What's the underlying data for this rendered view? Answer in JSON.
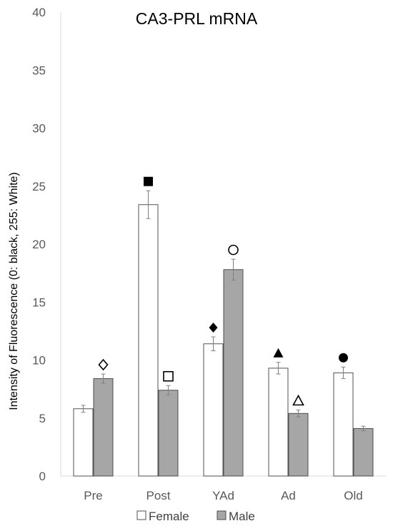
{
  "chart_data": {
    "type": "bar",
    "title": "CA3-PRL  mRNA",
    "xlabel": "",
    "ylabel": "Intensity of Fluorescence (0: black, 255: White)",
    "ylim": [
      0,
      40
    ],
    "yticks": [
      0,
      5,
      10,
      15,
      20,
      25,
      30,
      35,
      40
    ],
    "grid": false,
    "legend_position": "bottom",
    "categories": [
      "Pre",
      "Post",
      "YAd",
      "Ad",
      "Old"
    ],
    "series": [
      {
        "name": "Female",
        "fill": "#ffffff",
        "stroke": "#404040",
        "values": [
          5.8,
          23.4,
          11.4,
          9.3,
          8.9
        ],
        "errors": [
          0.3,
          1.2,
          0.6,
          0.5,
          0.5
        ],
        "markers": [
          "",
          "filled-square",
          "filled-diamond",
          "filled-triangle",
          "filled-circle"
        ]
      },
      {
        "name": "Male",
        "fill": "#a6a6a6",
        "stroke": "#404040",
        "values": [
          8.4,
          7.4,
          17.8,
          5.4,
          4.1
        ],
        "errors": [
          0.4,
          0.4,
          0.9,
          0.3,
          0.2
        ],
        "markers": [
          "open-diamond",
          "open-square",
          "open-circle",
          "open-triangle",
          ""
        ]
      }
    ]
  }
}
